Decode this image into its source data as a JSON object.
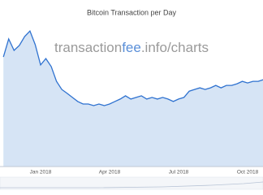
{
  "chart_data": {
    "type": "area",
    "title": "Bitcoin Transaction per Day",
    "watermark": [
      "transaction",
      "fee",
      ".info/charts"
    ],
    "categories": [
      null,
      null,
      null,
      null,
      null,
      null,
      null,
      "Jan 2018",
      null,
      null,
      null,
      null,
      null,
      null,
      null,
      null,
      null,
      null,
      null,
      null,
      "Apr 2018",
      null,
      null,
      null,
      null,
      null,
      null,
      null,
      null,
      null,
      null,
      null,
      null,
      "Jul 2018",
      null,
      null,
      null,
      null,
      null,
      null,
      null,
      null,
      null,
      null,
      null,
      null,
      "Oct 2018",
      null,
      null,
      null
    ],
    "values": [
      401000,
      467000,
      425000,
      443000,
      476000,
      496000,
      446000,
      372000,
      395000,
      366000,
      312000,
      282000,
      268000,
      253000,
      238000,
      229000,
      229000,
      223000,
      229000,
      223000,
      229000,
      238000,
      247000,
      259000,
      247000,
      253000,
      259000,
      247000,
      253000,
      247000,
      253000,
      247000,
      238000,
      247000,
      253000,
      276000,
      282000,
      288000,
      282000,
      288000,
      297000,
      288000,
      297000,
      297000,
      303000,
      312000,
      306000,
      312000,
      312000,
      318000
    ],
    "color": "#2f72d0",
    "fill": "#d6e4f5",
    "ylim": [
      0,
      550000
    ]
  }
}
